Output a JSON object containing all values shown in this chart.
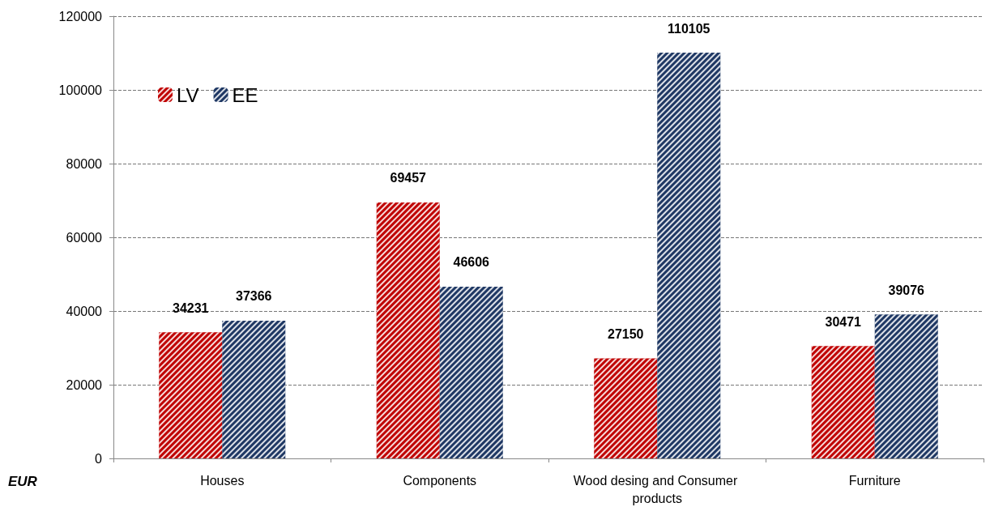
{
  "chart_data": {
    "type": "bar",
    "ylabel": "EUR",
    "categories": [
      "Houses",
      "Components",
      "Wood desing and Consumer products",
      "Furniture"
    ],
    "series": [
      {
        "name": "LV",
        "color": "#c00000",
        "values": [
          34231,
          69457,
          27150,
          30471
        ]
      },
      {
        "name": "EE",
        "color": "#1f3864",
        "values": [
          37366,
          46606,
          110105,
          39076
        ]
      }
    ],
    "ylim": [
      0,
      120000
    ],
    "yticks": [
      0,
      20000,
      40000,
      60000,
      80000,
      100000,
      120000
    ],
    "grid": "y",
    "legend": "top left",
    "data_labels": true
  }
}
